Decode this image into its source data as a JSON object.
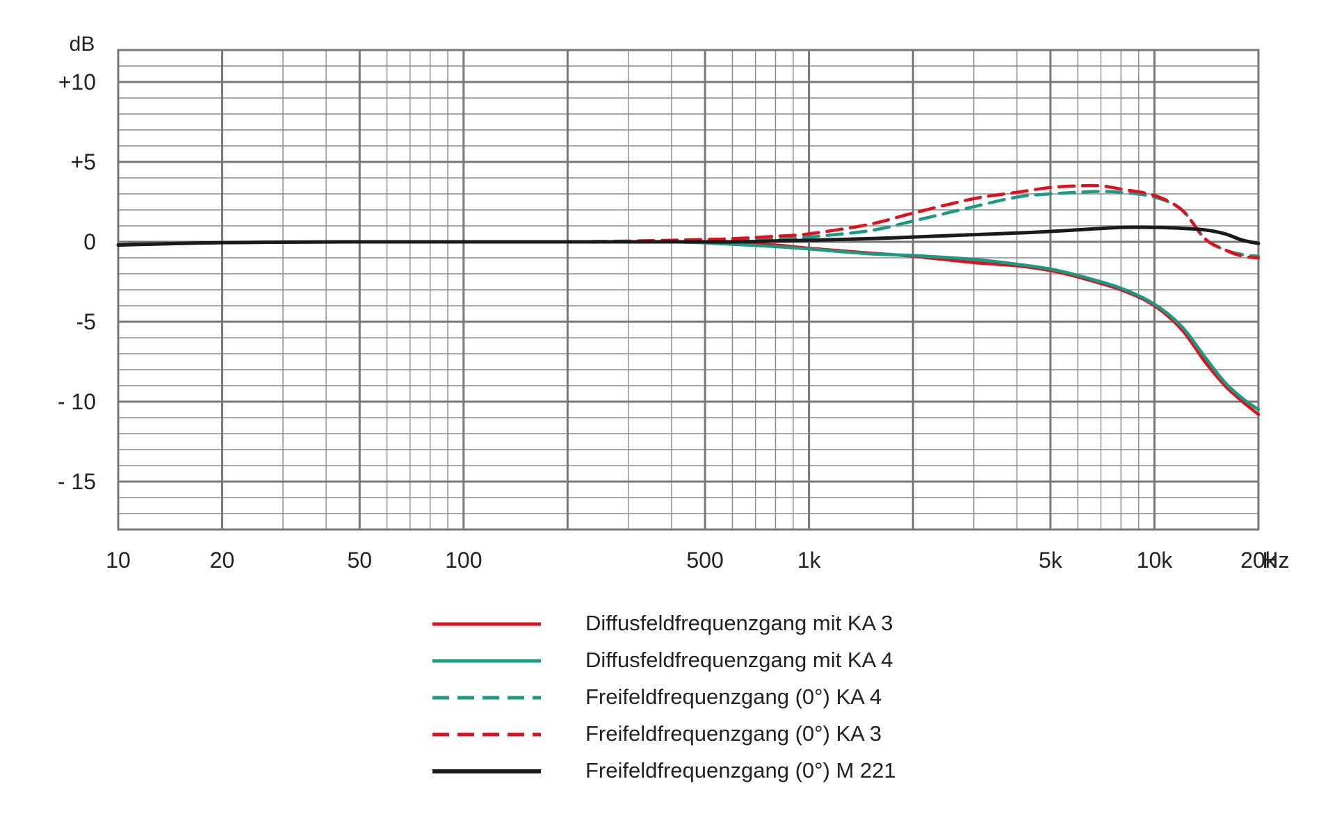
{
  "chart_data": {
    "type": "line",
    "xscale": "log",
    "xlim": [
      10,
      20000
    ],
    "ylim": [
      -18,
      12
    ],
    "grid": true,
    "y_unit": "dB",
    "x_unit": "Hz",
    "y_ticks": [
      {
        "value": 10,
        "label": "+10"
      },
      {
        "value": 5,
        "label": "+5"
      },
      {
        "value": 0,
        "label": "0"
      },
      {
        "value": -5,
        "label": "-5"
      },
      {
        "value": -10,
        "label": "- 10"
      },
      {
        "value": -15,
        "label": "- 15"
      }
    ],
    "x_ticks": [
      {
        "value": 10,
        "label": "10"
      },
      {
        "value": 20,
        "label": "20"
      },
      {
        "value": 50,
        "label": "50"
      },
      {
        "value": 100,
        "label": "100"
      },
      {
        "value": 500,
        "label": "500"
      },
      {
        "value": 1000,
        "label": "1k"
      },
      {
        "value": 5000,
        "label": "5k"
      },
      {
        "value": 10000,
        "label": "10k"
      },
      {
        "value": 20000,
        "label": "20k"
      }
    ],
    "legend_position": "bottom-center",
    "series": [
      {
        "name": "Diffusfeldfrequenzgang mit KA 3",
        "color": "#e0101e",
        "dash": "solid",
        "x": [
          10,
          20,
          50,
          100,
          200,
          400,
          600,
          800,
          1000,
          1500,
          2000,
          3000,
          4000,
          5000,
          6000,
          8000,
          10000,
          12000,
          14000,
          16000,
          18000,
          20000
        ],
        "y": [
          -0.2,
          -0.05,
          0,
          0,
          0,
          0,
          -0.1,
          -0.2,
          -0.4,
          -0.7,
          -0.9,
          -1.3,
          -1.5,
          -1.8,
          -2.2,
          -3.0,
          -4.0,
          -5.5,
          -7.5,
          -9.0,
          -10.0,
          -10.8
        ]
      },
      {
        "name": "Diffusfeldfrequenzgang mit KA 4",
        "color": "#1a9a82",
        "dash": "solid",
        "x": [
          10,
          20,
          50,
          100,
          200,
          400,
          600,
          800,
          1000,
          1500,
          2000,
          3000,
          4000,
          5000,
          6000,
          8000,
          10000,
          12000,
          14000,
          16000,
          18000,
          20000
        ],
        "y": [
          -0.2,
          -0.05,
          0,
          0,
          0,
          0,
          -0.15,
          -0.3,
          -0.45,
          -0.75,
          -0.85,
          -1.1,
          -1.4,
          -1.7,
          -2.1,
          -2.9,
          -3.9,
          -5.3,
          -7.2,
          -8.8,
          -9.8,
          -10.5
        ]
      },
      {
        "name": "Freifeldfrequenzgang (0°) KA 4",
        "color": "#1a9a82",
        "dash": "dashed",
        "x": [
          10,
          20,
          50,
          100,
          200,
          400,
          600,
          800,
          1000,
          1500,
          2000,
          3000,
          4000,
          5000,
          6000,
          7000,
          8000,
          10000,
          12000,
          14000,
          16000,
          18000,
          20000
        ],
        "y": [
          -0.2,
          -0.05,
          0,
          0,
          0,
          0.05,
          0.1,
          0.15,
          0.3,
          0.7,
          1.3,
          2.2,
          2.8,
          3.0,
          3.1,
          3.15,
          3.1,
          2.8,
          2.0,
          0.2,
          -0.5,
          -0.8,
          -0.9
        ]
      },
      {
        "name": "Freifeldfrequenzgang (0°) KA 3",
        "color": "#e0101e",
        "dash": "dashed",
        "x": [
          10,
          20,
          50,
          100,
          200,
          400,
          600,
          800,
          1000,
          1500,
          2000,
          3000,
          4000,
          5000,
          6000,
          7000,
          8000,
          10000,
          12000,
          14000,
          16000,
          18000,
          20000
        ],
        "y": [
          -0.2,
          -0.05,
          0,
          0,
          0,
          0.1,
          0.2,
          0.35,
          0.5,
          1.1,
          1.8,
          2.7,
          3.1,
          3.4,
          3.5,
          3.5,
          3.3,
          2.9,
          2.0,
          0.2,
          -0.5,
          -0.9,
          -1.0
        ]
      },
      {
        "name": "Freifeldfrequenzgang (0°) M 221",
        "color": "#1a1a1a",
        "dash": "solid",
        "x": [
          10,
          20,
          50,
          100,
          200,
          400,
          600,
          800,
          1000,
          1500,
          2000,
          3000,
          4000,
          5000,
          6000,
          8000,
          10000,
          12000,
          14000,
          16000,
          18000,
          20000
        ],
        "y": [
          -0.2,
          -0.05,
          0,
          0,
          0,
          0,
          0,
          0.05,
          0.1,
          0.2,
          0.3,
          0.45,
          0.55,
          0.65,
          0.75,
          0.9,
          0.9,
          0.85,
          0.75,
          0.5,
          0.1,
          -0.1
        ]
      }
    ]
  }
}
